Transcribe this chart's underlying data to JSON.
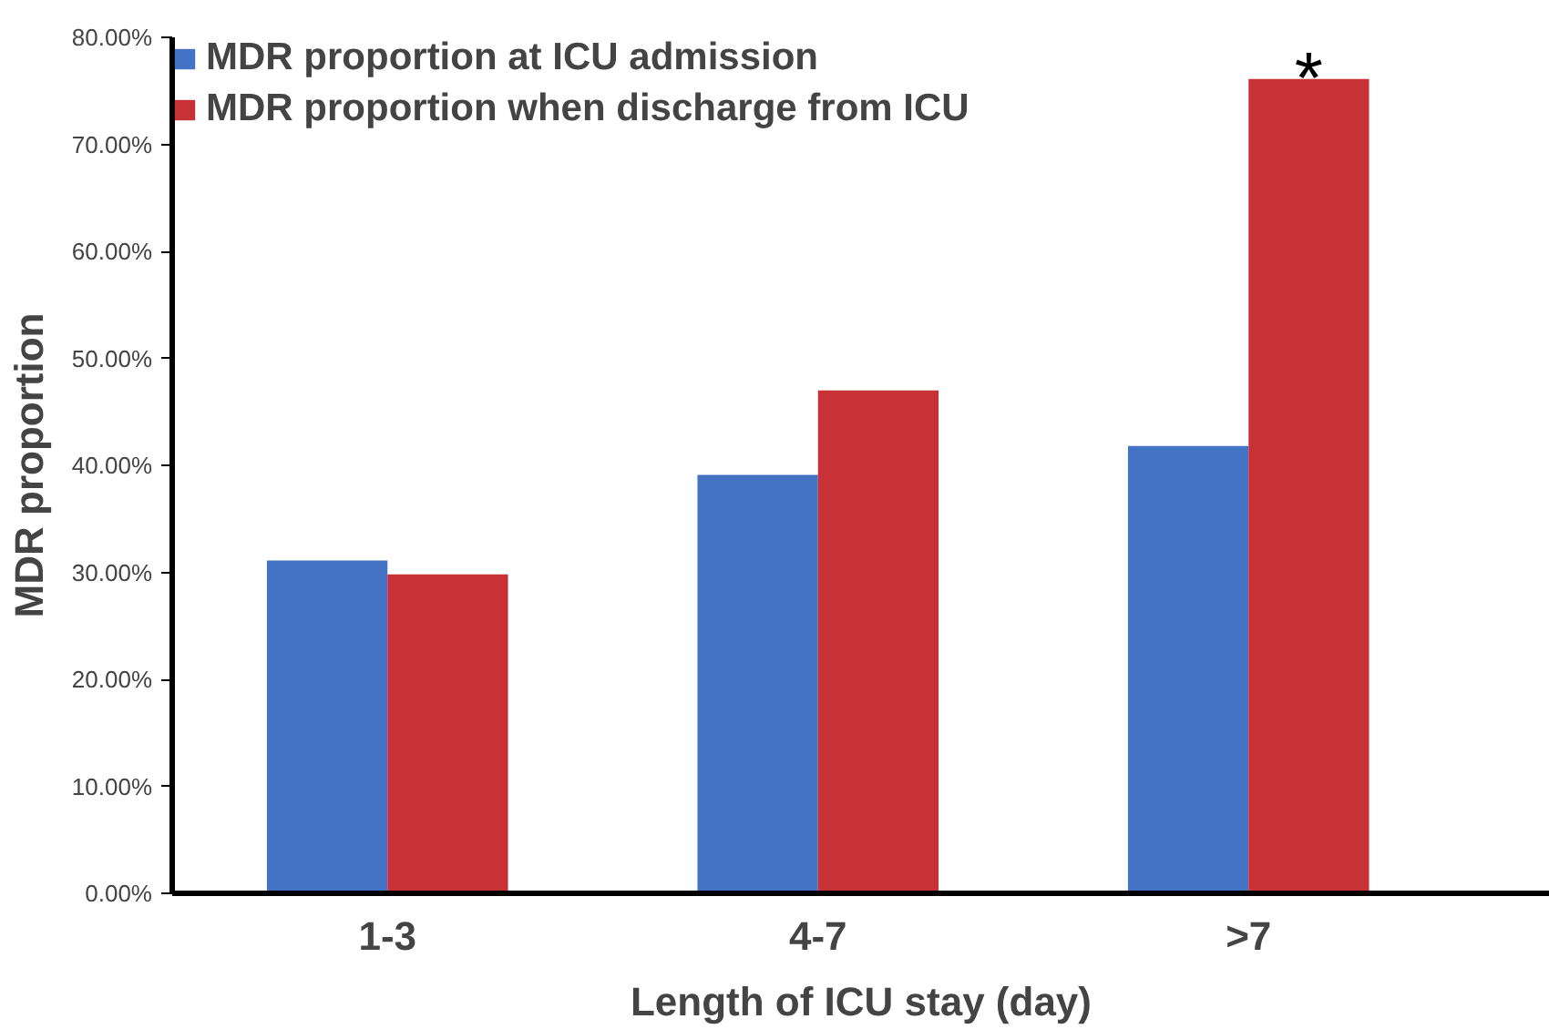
{
  "chart_data": {
    "type": "bar",
    "xlabel": "Length of ICU stay (day)",
    "ylabel": "MDR proportion",
    "categories": [
      "1-3",
      "4-7",
      ">7"
    ],
    "series": [
      {
        "name": "MDR proportion at ICU admission",
        "color": "#4472c4",
        "values": [
          31.1,
          39.1,
          41.8
        ]
      },
      {
        "name": "MDR proportion when discharge from ICU",
        "color": "#c83237",
        "values": [
          29.8,
          47.0,
          76.1
        ]
      }
    ],
    "ylim": [
      0,
      80
    ],
    "yticks": [
      {
        "value": 0,
        "label": "0.00%"
      },
      {
        "value": 10,
        "label": "10.00%"
      },
      {
        "value": 20,
        "label": "20.00%"
      },
      {
        "value": 30,
        "label": "30.00%"
      },
      {
        "value": 40,
        "label": "40.00%"
      },
      {
        "value": 50,
        "label": "50.00%"
      },
      {
        "value": 60,
        "label": "60.00%"
      },
      {
        "value": 70,
        "label": "70.00%"
      },
      {
        "value": 80,
        "label": "80.00%"
      }
    ],
    "annotations": [
      {
        "text": "*",
        "x": ">7",
        "y": 76.1
      }
    ],
    "legend": "top left",
    "grid": false
  }
}
